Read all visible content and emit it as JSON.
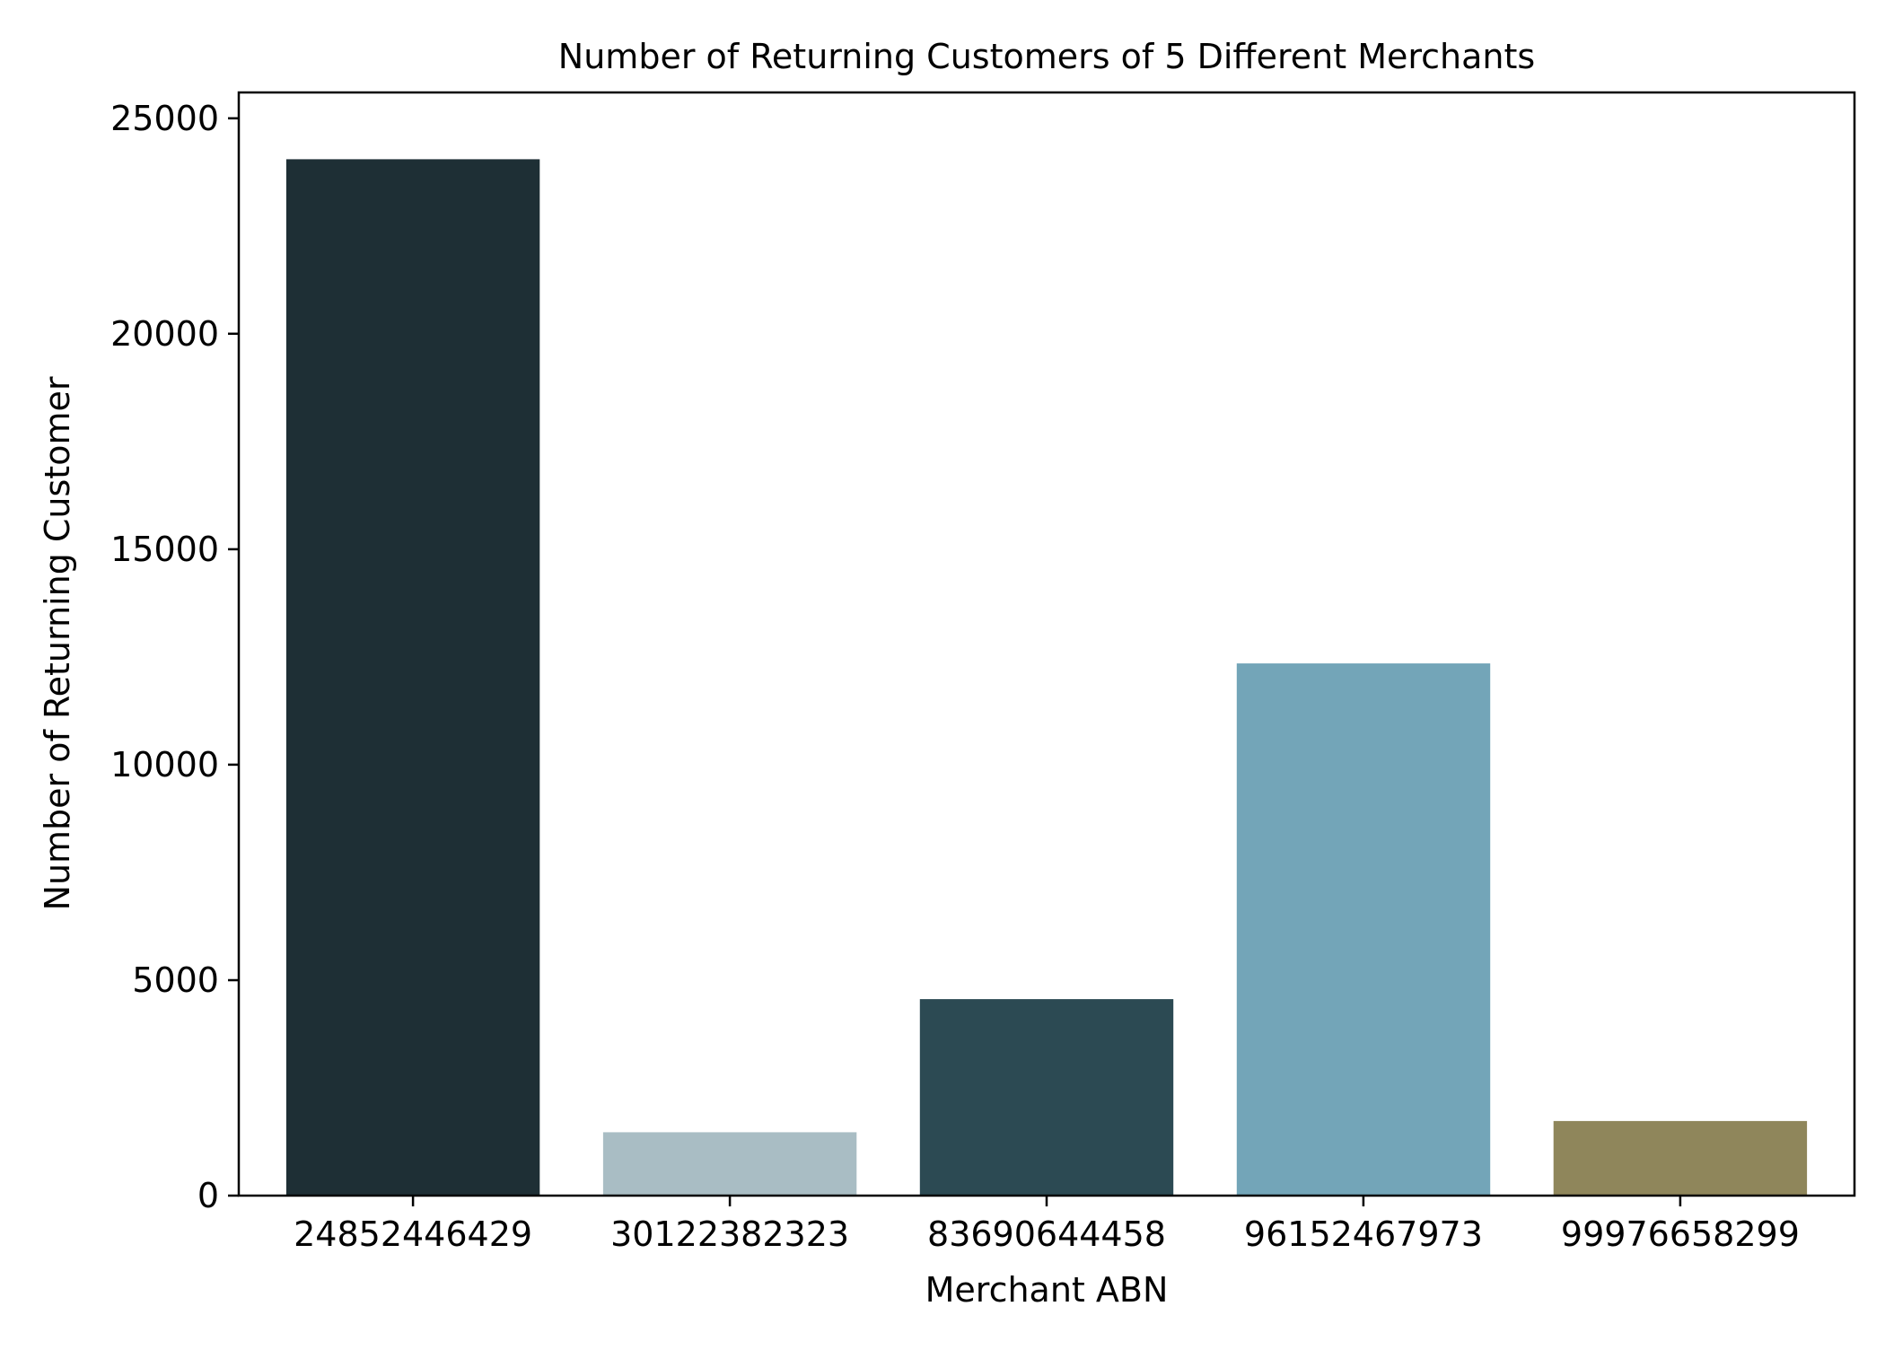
{
  "chart_data": {
    "type": "bar",
    "title": "Number of Returning Customers of 5 Different Merchants",
    "xlabel": "Merchant ABN",
    "ylabel": "Number of Returning Customer",
    "categories": [
      "24852446429",
      "30122382323",
      "83690644458",
      "96152467973",
      "99976658299"
    ],
    "values": [
      24050,
      1470,
      4560,
      12350,
      1730
    ],
    "colors": [
      "#1e2f35",
      "#a9bdc4",
      "#2c4a53",
      "#73a5b8",
      "#8f865b"
    ],
    "ylim": [
      0,
      25600
    ],
    "yticks": [
      0,
      5000,
      10000,
      15000,
      20000,
      25000
    ],
    "ytick_labels": [
      "0",
      "5000",
      "10000",
      "15000",
      "20000",
      "25000"
    ],
    "grid": false,
    "legend": "none"
  }
}
